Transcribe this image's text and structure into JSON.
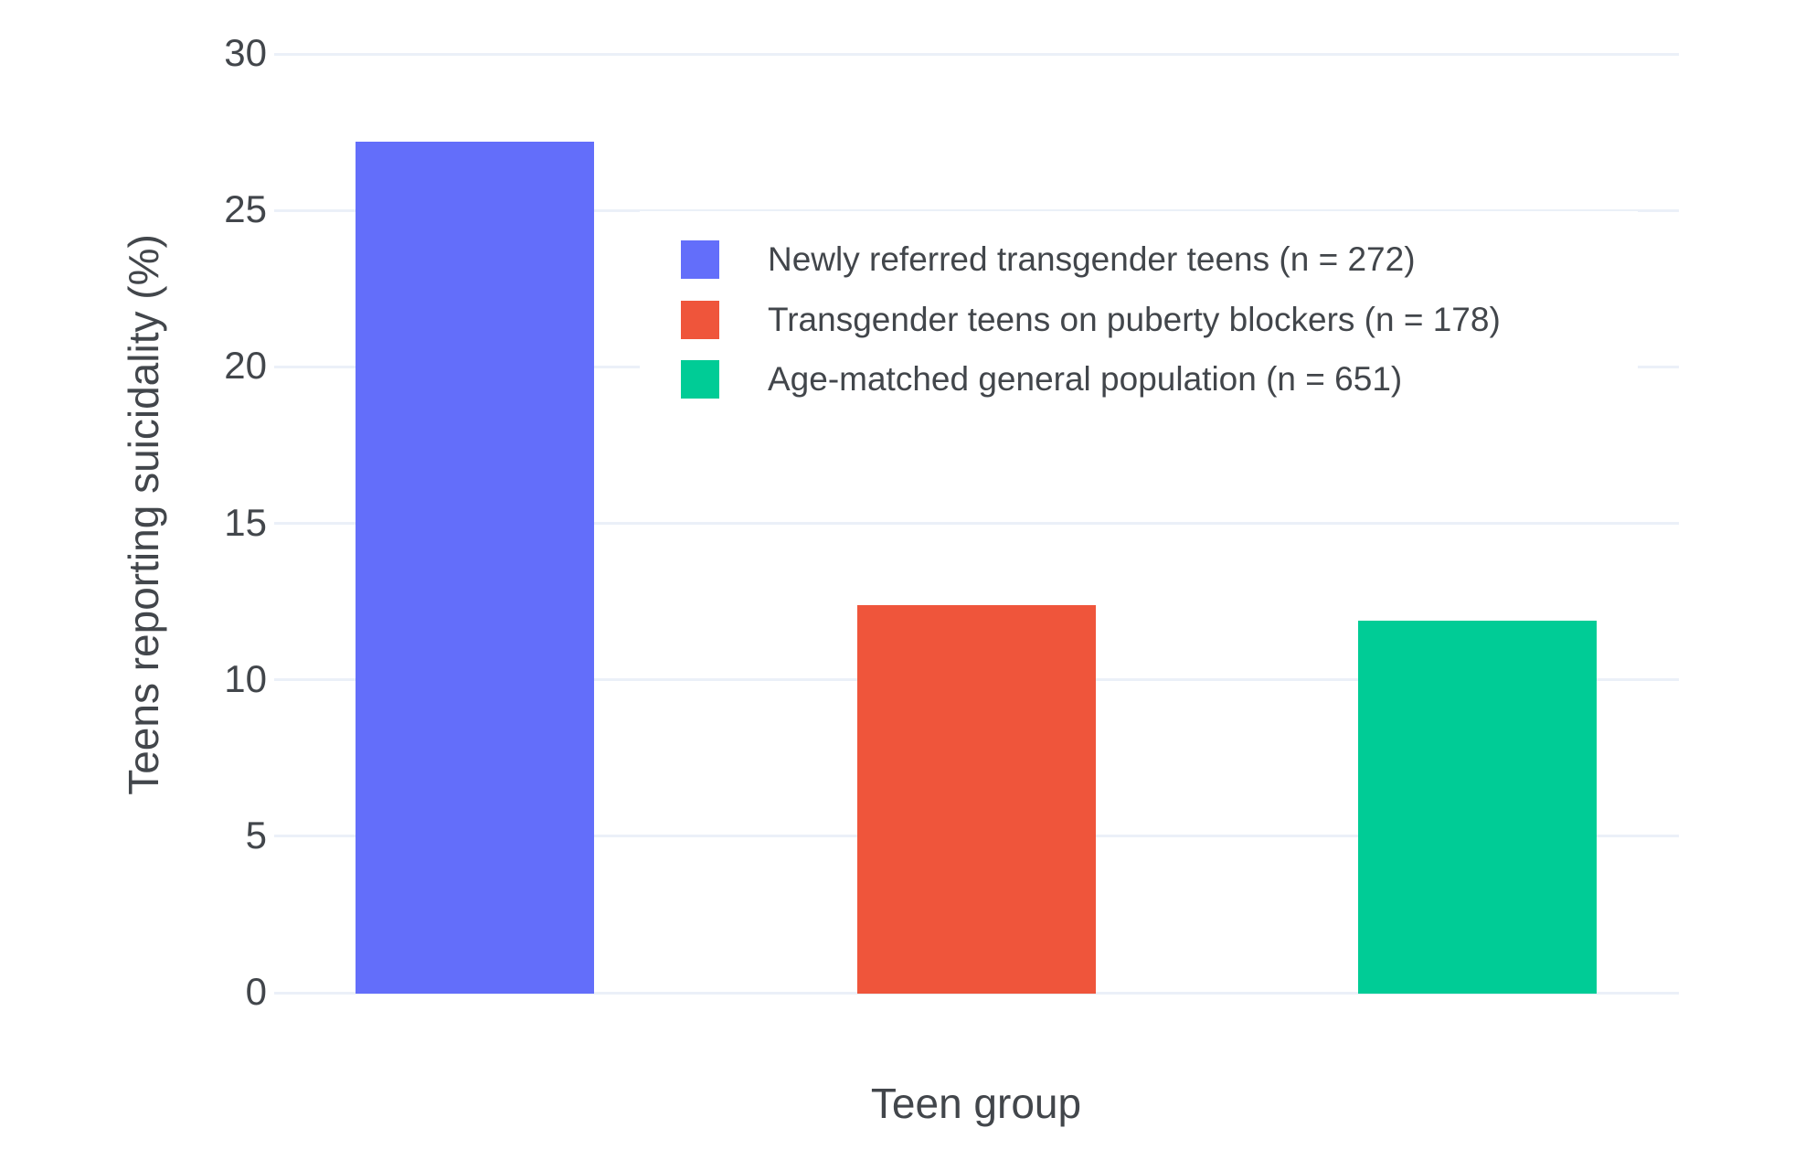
{
  "chart_data": {
    "type": "bar",
    "title": "",
    "xlabel": "Teen group",
    "ylabel": "Teens reporting suicidality (%)",
    "ylim": [
      0,
      30
    ],
    "yticks": [
      0,
      5,
      10,
      15,
      20,
      25,
      30
    ],
    "grid": true,
    "grid_color": "#ebf0f8",
    "background_color": "#ffffff",
    "text_color": "#42464b",
    "legend_position": "inside-top-center",
    "series": [
      {
        "name": "Newly referred transgender teens (n = 272)",
        "value": 27.2,
        "color": "#636efa"
      },
      {
        "name": "Transgender teens on puberty blockers (n = 178)",
        "value": 12.4,
        "color": "#ef553b"
      },
      {
        "name": "Age-matched general population (n = 651)",
        "value": 11.9,
        "color": "#00cc96"
      }
    ]
  }
}
